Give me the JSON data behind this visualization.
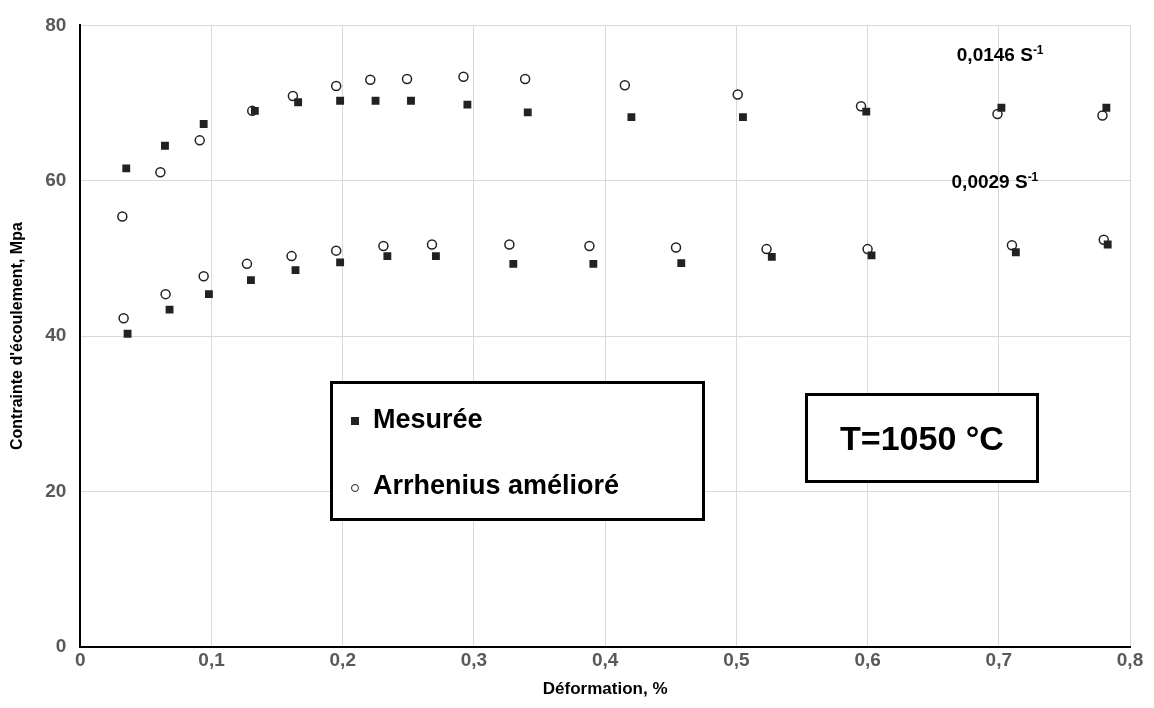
{
  "chart_data": {
    "type": "scatter",
    "xlabel": "Déformation, %",
    "ylabel": "Contrainte d'écoulement, Mpa",
    "xlim": [
      0,
      0.8
    ],
    "xticks": [
      {
        "value": 0,
        "label": "0"
      },
      {
        "value": 0.1,
        "label": "0,1"
      },
      {
        "value": 0.2,
        "label": "0,2"
      },
      {
        "value": 0.3,
        "label": "0,3"
      },
      {
        "value": 0.4,
        "label": "0,4"
      },
      {
        "value": 0.5,
        "label": "0,5"
      },
      {
        "value": 0.6,
        "label": "0,6"
      },
      {
        "value": 0.7,
        "label": "0,7"
      },
      {
        "value": 0.8,
        "label": "0,8"
      }
    ],
    "ylim": [
      0,
      80
    ],
    "yticks": [
      0,
      20,
      40,
      60,
      80
    ],
    "grid": true,
    "legend": "bottom left",
    "series": [
      {
        "name": "Mesurée",
        "color": "#222222",
        "marker": "square",
        "x": [
          0.035,
          0.0645,
          0.094,
          0.133,
          0.166,
          0.198,
          0.225,
          0.252,
          0.295,
          0.341,
          0.42,
          0.505,
          0.599,
          0.702,
          0.782,
          0.036,
          0.068,
          0.098,
          0.13,
          0.164,
          0.198,
          0.234,
          0.271,
          0.33,
          0.391,
          0.458,
          0.527,
          0.603,
          0.713,
          0.783
        ],
        "values": [
          61.6,
          64.5,
          67.3,
          69.0,
          70.1,
          70.3,
          70.3,
          70.3,
          69.8,
          68.8,
          68.2,
          68.2,
          68.9,
          69.4,
          69.4,
          40.3,
          43.4,
          45.4,
          47.2,
          48.5,
          49.5,
          50.3,
          50.3,
          49.3,
          49.3,
          49.4,
          50.2,
          50.4,
          50.8,
          51.8
        ]
      },
      {
        "name": "Arrhenius amélioré",
        "color": "#222222",
        "marker": "circle",
        "x": [
          0.032,
          0.061,
          0.091,
          0.131,
          0.162,
          0.195,
          0.221,
          0.249,
          0.292,
          0.339,
          0.415,
          0.501,
          0.595,
          0.699,
          0.779,
          0.033,
          0.065,
          0.094,
          0.127,
          0.161,
          0.195,
          0.231,
          0.268,
          0.327,
          0.388,
          0.454,
          0.523,
          0.6,
          0.71,
          0.78
        ],
        "values": [
          55.4,
          61.1,
          65.2,
          69.0,
          70.9,
          72.2,
          73.0,
          73.1,
          73.4,
          73.1,
          72.3,
          71.1,
          69.6,
          68.6,
          68.4,
          42.3,
          45.4,
          47.7,
          49.3,
          50.3,
          51.0,
          51.6,
          51.8,
          51.8,
          51.6,
          51.4,
          51.2,
          51.2,
          51.7,
          52.4
        ]
      }
    ],
    "annotations": [
      "0,0146 S$^{-1}$",
      "0,0029 S$^{-1}$",
      "T=1050 °C"
    ]
  }
}
